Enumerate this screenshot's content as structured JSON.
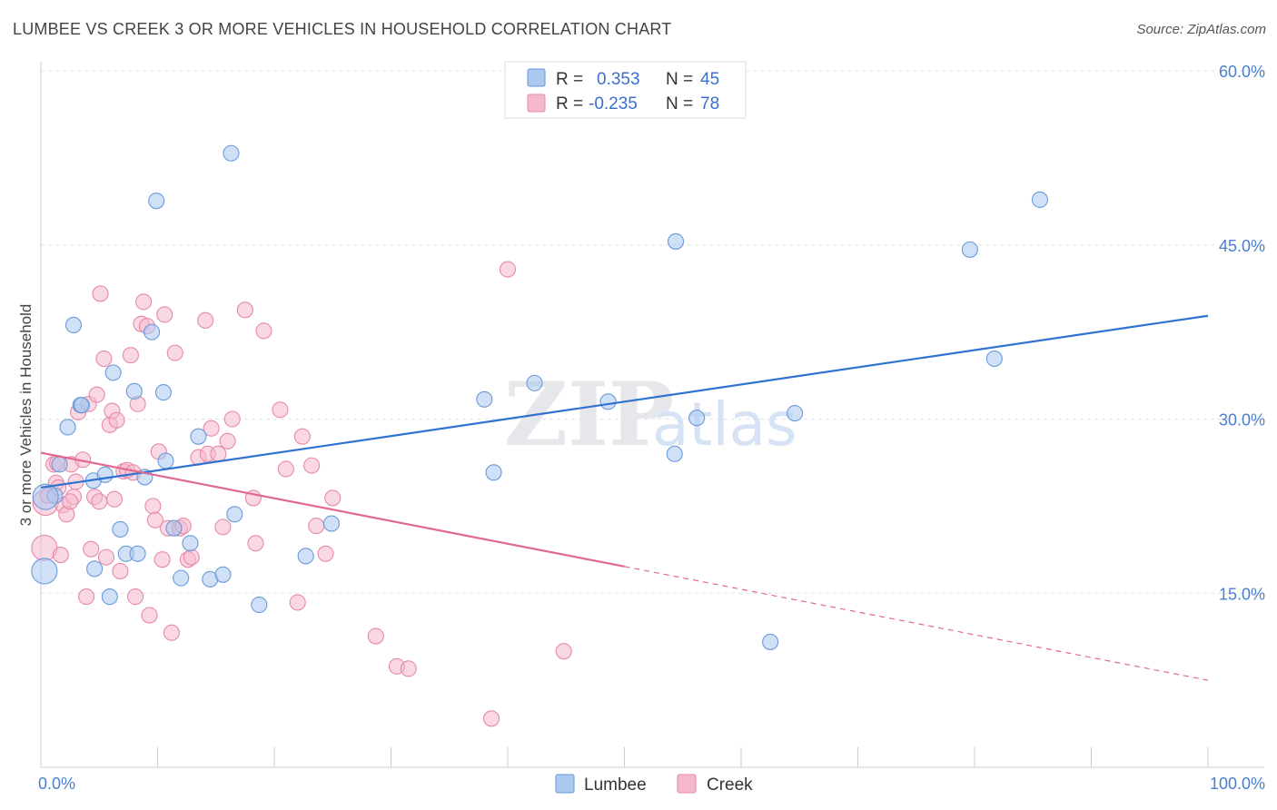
{
  "header": {
    "title": "LUMBEE VS CREEK 3 OR MORE VEHICLES IN HOUSEHOLD CORRELATION CHART",
    "source": "Source: ZipAtlas.com"
  },
  "watermark": {
    "zip": "ZIP",
    "atlas": "atlas"
  },
  "colors": {
    "lumbee_fill": "#aac8f0",
    "lumbee_stroke": "#6a9ad8",
    "lumbee_line": "#2f72d0",
    "creek_fill": "#f6b8cc",
    "creek_stroke": "#e58aa8",
    "creek_line": "#e06891",
    "grid": "#dfe3e8",
    "tick_label": "#4a7fd0"
  },
  "legend": {
    "rows": [
      {
        "r_label": "R =",
        "r_value": "0.353",
        "n_label": "N =",
        "n_value": "45"
      },
      {
        "r_label": "R =",
        "r_value": "-0.235",
        "n_label": "N =",
        "n_value": "78"
      }
    ]
  },
  "chart_data": {
    "type": "scatter",
    "title": "LUMBEE VS CREEK 3 OR MORE VEHICLES IN HOUSEHOLD CORRELATION CHART",
    "xlabel": "",
    "ylabel": "3 or more Vehicles in Household",
    "xlim": [
      0,
      100
    ],
    "ylim": [
      0,
      60
    ],
    "x_tick_labels": [
      "0.0%",
      "100.0%"
    ],
    "y_ticks": [
      15,
      30,
      45,
      60
    ],
    "y_tick_labels": [
      "15.0%",
      "30.0%",
      "45.0%",
      "60.0%"
    ],
    "grid": true,
    "legend_position": "top-center",
    "series": [
      {
        "name": "Lumbee",
        "trend": {
          "x": [
            0,
            100
          ],
          "y": [
            24.1,
            38.9
          ],
          "solid_until": 100
        },
        "points": [
          [
            0.3,
            16.9
          ],
          [
            1.6,
            26.1
          ],
          [
            1.2,
            23.4
          ],
          [
            2.3,
            29.3
          ],
          [
            2.8,
            38.1
          ],
          [
            3.4,
            31.2
          ],
          [
            3.5,
            31.2
          ],
          [
            4.5,
            24.7
          ],
          [
            4.6,
            17.1
          ],
          [
            5.5,
            25.2
          ],
          [
            5.9,
            14.7
          ],
          [
            6.2,
            34.0
          ],
          [
            6.8,
            20.5
          ],
          [
            7.3,
            18.4
          ],
          [
            8.0,
            32.4
          ],
          [
            8.3,
            18.4
          ],
          [
            8.9,
            25.0
          ],
          [
            9.5,
            37.5
          ],
          [
            9.9,
            48.8
          ],
          [
            10.5,
            32.3
          ],
          [
            10.7,
            26.4
          ],
          [
            11.4,
            20.6
          ],
          [
            12.0,
            16.3
          ],
          [
            12.8,
            19.3
          ],
          [
            13.5,
            28.5
          ],
          [
            14.5,
            16.2
          ],
          [
            15.6,
            16.6
          ],
          [
            16.3,
            52.9
          ],
          [
            16.6,
            21.8
          ],
          [
            18.7,
            14.0
          ],
          [
            22.7,
            18.2
          ],
          [
            24.9,
            21.0
          ],
          [
            38.0,
            31.7
          ],
          [
            38.8,
            25.4
          ],
          [
            42.3,
            33.1
          ],
          [
            48.6,
            31.5
          ],
          [
            54.3,
            27.0
          ],
          [
            54.4,
            45.3
          ],
          [
            56.2,
            30.1
          ],
          [
            62.5,
            10.8
          ],
          [
            64.6,
            30.5
          ],
          [
            79.6,
            44.6
          ],
          [
            81.7,
            35.2
          ],
          [
            85.6,
            48.9
          ],
          [
            0.4,
            23.3
          ]
        ]
      },
      {
        "name": "Creek",
        "trend": {
          "x": [
            0,
            100
          ],
          "y": [
            27.1,
            7.5
          ],
          "solid_until": 50
        },
        "points": [
          [
            0.3,
            18.9
          ],
          [
            0.4,
            22.8
          ],
          [
            0.6,
            23.4
          ],
          [
            1.1,
            26.1
          ],
          [
            1.3,
            24.5
          ],
          [
            1.5,
            24.1
          ],
          [
            1.7,
            18.3
          ],
          [
            1.9,
            22.6
          ],
          [
            2.2,
            21.8
          ],
          [
            2.6,
            26.1
          ],
          [
            2.8,
            23.3
          ],
          [
            3.0,
            24.6
          ],
          [
            3.2,
            30.6
          ],
          [
            3.6,
            26.5
          ],
          [
            3.9,
            14.7
          ],
          [
            4.1,
            31.3
          ],
          [
            4.3,
            18.8
          ],
          [
            4.6,
            23.3
          ],
          [
            4.8,
            32.1
          ],
          [
            5.1,
            40.8
          ],
          [
            5.4,
            35.2
          ],
          [
            5.6,
            18.1
          ],
          [
            5.9,
            29.5
          ],
          [
            6.1,
            30.7
          ],
          [
            6.3,
            23.1
          ],
          [
            6.5,
            29.9
          ],
          [
            6.8,
            16.9
          ],
          [
            7.1,
            25.5
          ],
          [
            7.4,
            25.6
          ],
          [
            7.7,
            35.5
          ],
          [
            7.9,
            25.4
          ],
          [
            8.1,
            14.7
          ],
          [
            8.3,
            31.3
          ],
          [
            8.6,
            38.2
          ],
          [
            8.8,
            40.1
          ],
          [
            9.1,
            38.0
          ],
          [
            9.3,
            13.1
          ],
          [
            9.6,
            22.5
          ],
          [
            9.8,
            21.3
          ],
          [
            10.1,
            27.2
          ],
          [
            10.4,
            17.9
          ],
          [
            10.6,
            39.0
          ],
          [
            10.9,
            20.6
          ],
          [
            11.2,
            11.6
          ],
          [
            11.5,
            35.7
          ],
          [
            11.9,
            20.6
          ],
          [
            12.2,
            20.8
          ],
          [
            12.6,
            17.9
          ],
          [
            12.9,
            18.1
          ],
          [
            13.5,
            26.7
          ],
          [
            14.1,
            38.5
          ],
          [
            14.3,
            27.0
          ],
          [
            14.6,
            29.2
          ],
          [
            15.2,
            27.0
          ],
          [
            15.6,
            20.7
          ],
          [
            16.0,
            28.1
          ],
          [
            16.4,
            30.0
          ],
          [
            17.5,
            39.4
          ],
          [
            18.2,
            23.2
          ],
          [
            18.4,
            19.3
          ],
          [
            19.1,
            37.6
          ],
          [
            20.5,
            30.8
          ],
          [
            21.0,
            25.7
          ],
          [
            22.0,
            14.2
          ],
          [
            22.4,
            28.5
          ],
          [
            23.2,
            26.0
          ],
          [
            23.6,
            20.8
          ],
          [
            24.4,
            18.4
          ],
          [
            25.0,
            23.2
          ],
          [
            28.7,
            11.3
          ],
          [
            30.5,
            8.7
          ],
          [
            31.5,
            8.5
          ],
          [
            38.6,
            4.2
          ],
          [
            40.0,
            42.9
          ],
          [
            44.8,
            10.0
          ],
          [
            1.4,
            26.2
          ],
          [
            2.5,
            22.9
          ],
          [
            5.0,
            22.9
          ]
        ]
      }
    ]
  }
}
